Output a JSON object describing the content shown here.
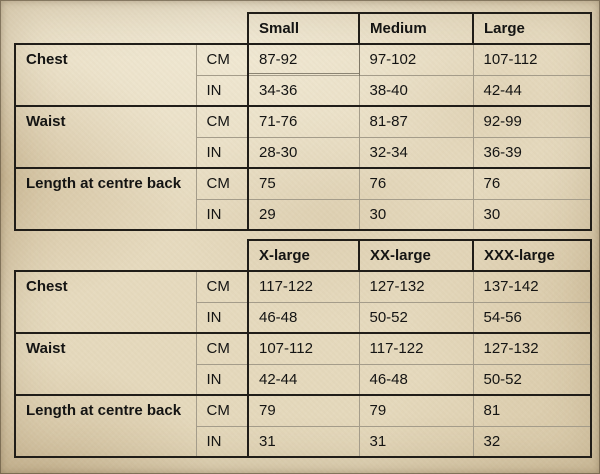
{
  "colors": {
    "parchment_background": "#e7dcc2",
    "heavy_border": "#201d18",
    "thin_line": "#a49c8a",
    "text": "#141413"
  },
  "chart_data": [
    {
      "type": "table",
      "name": "size-chart-small-to-large",
      "headers": [
        "Small",
        "Medium",
        "Large"
      ],
      "row_group_labels": [
        "Chest",
        "Waist",
        "Length at centre back"
      ],
      "units": [
        "CM",
        "IN"
      ],
      "rows": [
        [
          "Chest",
          "CM",
          "87-92",
          "97-102",
          "107-112"
        ],
        [
          "",
          "IN",
          "34-36",
          "38-40",
          "42-44"
        ],
        [
          "Waist",
          "CM",
          "71-76",
          "81-87",
          "92-99"
        ],
        [
          "",
          "IN",
          "28-30",
          "32-34",
          "36-39"
        ],
        [
          "Length at centre back",
          "CM",
          "75",
          "76",
          "76"
        ],
        [
          "",
          "IN",
          "29",
          "30",
          "30"
        ]
      ]
    },
    {
      "type": "table",
      "name": "size-chart-xlarge-to-xxxlarge",
      "headers": [
        "X-large",
        "XX-large",
        "XXX-large"
      ],
      "row_group_labels": [
        "Chest",
        "Waist",
        "Length at centre back"
      ],
      "units": [
        "CM",
        "IN"
      ],
      "rows": [
        [
          "Chest",
          "CM",
          "117-122",
          "127-132",
          "137-142"
        ],
        [
          "",
          "IN",
          "46-48",
          "50-52",
          "54-56"
        ],
        [
          "Waist",
          "CM",
          "107-112",
          "117-122",
          "127-132"
        ],
        [
          "",
          "IN",
          "42-44",
          "46-48",
          "50-52"
        ],
        [
          "Length at centre back",
          "CM",
          "79",
          "79",
          "81"
        ],
        [
          "",
          "IN",
          "31",
          "31",
          "32"
        ]
      ]
    }
  ]
}
